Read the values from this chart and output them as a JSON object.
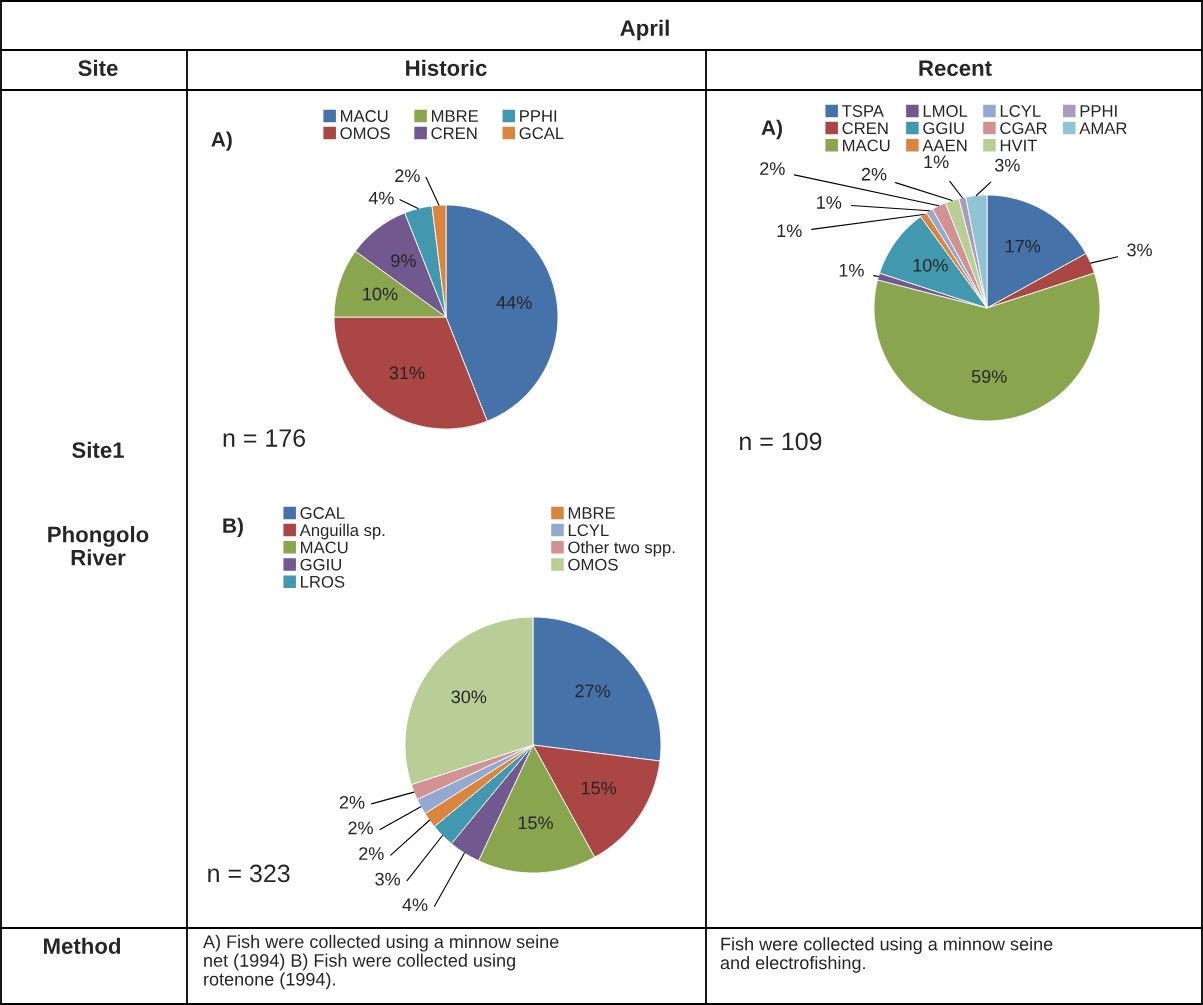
{
  "chart_data": [
    {
      "type": "other",
      "annotations": [
        "April",
        "Site",
        "Historic",
        "Recent",
        "Site1",
        "Phongolo\nRiver",
        "Method",
        "A) Fish were collected using a minnow seine\nnet (1994) B) Fish were collected using\nrotenone (1994).",
        "Fish were collected using a minnow seine\nand electrofishing."
      ]
    },
    {
      "type": "pie",
      "title": "A)",
      "legend": "top",
      "value_labels": [
        "44%",
        "31%",
        "10%",
        "9%",
        "4%",
        "2%"
      ],
      "annotations": [
        "n = 176"
      ],
      "categories": [
        "MACU",
        "OMOS",
        "MBRE",
        "CREN",
        "PPHI",
        "GCAL"
      ],
      "values": [
        44,
        31,
        10,
        9,
        4,
        2
      ],
      "colors": [
        "#4672aa",
        "#aa4643",
        "#89a54e",
        "#71588f",
        "#4198af",
        "#db843d"
      ]
    },
    {
      "type": "pie",
      "title": "A)",
      "legend": "top",
      "value_labels": [
        "17%",
        "3%",
        "59%",
        "1%",
        "10%",
        "1%",
        "1%",
        "2%",
        "2%",
        "1%",
        "3%"
      ],
      "annotations": [
        "n = 109"
      ],
      "categories": [
        "TSPA",
        "CREN",
        "MACU",
        "LMOL",
        "GGIU",
        "AAEN",
        "LCYL",
        "CGAR",
        "HVIT",
        "PPHI",
        "AMAR"
      ],
      "values": [
        17,
        3,
        59,
        1,
        10,
        1,
        1,
        2,
        2,
        1,
        3
      ],
      "colors": [
        "#4672aa",
        "#aa4643",
        "#89a54e",
        "#71588f",
        "#4198af",
        "#db843d",
        "#93a9cf",
        "#d19392",
        "#b9cd96",
        "#a99bbd",
        "#92c3d5"
      ]
    },
    {
      "type": "pie",
      "title": "B)",
      "legend": "top",
      "value_labels": [
        "27%",
        "15%",
        "15%",
        "4%",
        "3%",
        "2%",
        "2%",
        "2%",
        "30%"
      ],
      "annotations": [
        "n = 323"
      ],
      "categories": [
        "GCAL",
        "Anguilla sp.",
        "MACU",
        "GGIU",
        "LROS",
        "MBRE",
        "LCYL",
        "Other two spp.",
        "OMOS"
      ],
      "values": [
        27,
        15,
        15,
        4,
        3,
        2,
        2,
        2,
        30
      ],
      "colors": [
        "#4672aa",
        "#aa4643",
        "#89a54e",
        "#71588f",
        "#4198af",
        "#db843d",
        "#93a9cf",
        "#d19392",
        "#b9cd96"
      ]
    }
  ]
}
